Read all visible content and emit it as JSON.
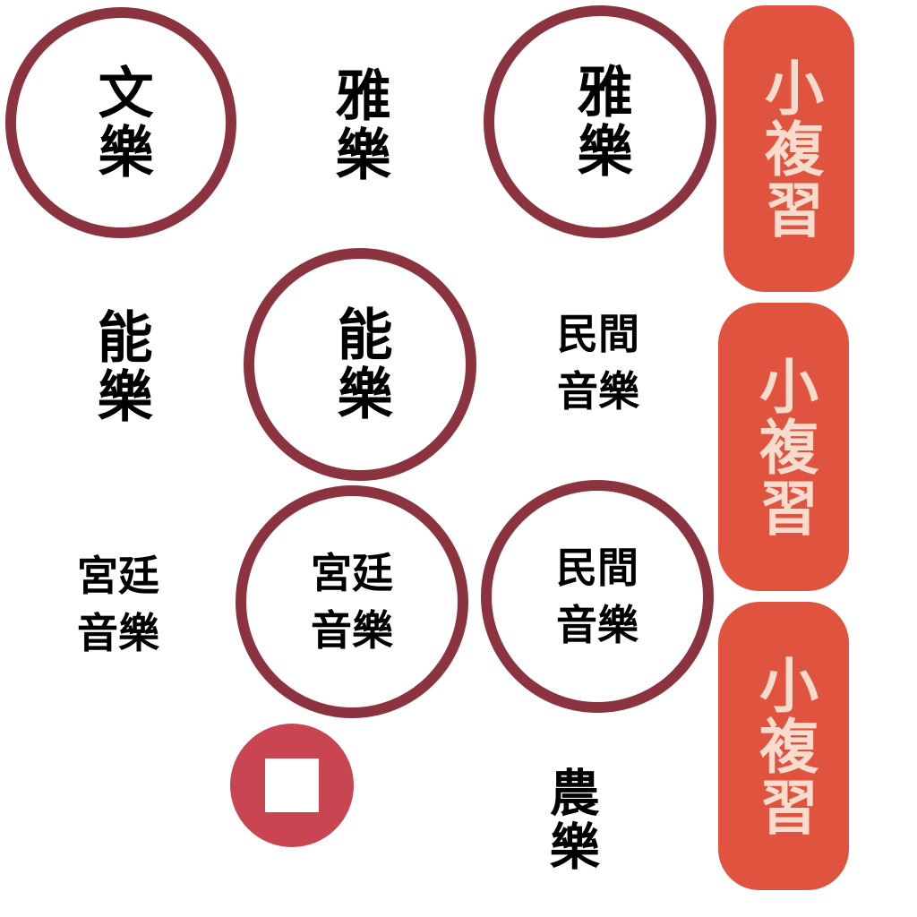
{
  "cards": [
    {
      "id": "wenyue-ring",
      "text": "文樂"
    },
    {
      "id": "yayue-plain",
      "text": "雅樂"
    },
    {
      "id": "yayue-ring",
      "text": "雅樂"
    },
    {
      "id": "nengyue-plain",
      "text": "能樂"
    },
    {
      "id": "nengyue-ring",
      "text": "能樂"
    },
    {
      "id": "minjian-plain",
      "text": "民間音樂"
    },
    {
      "id": "gongting-plain",
      "text": "宮廷音樂"
    },
    {
      "id": "gongting-ring",
      "text": "宮廷音樂"
    },
    {
      "id": "minjian-ring",
      "text": "民間音樂"
    },
    {
      "id": "nongyue-plain",
      "text": "農樂"
    }
  ],
  "review_buttons": [
    {
      "label": "小複習"
    },
    {
      "label": "小複習"
    },
    {
      "label": "小複習"
    }
  ],
  "stop_button": {
    "icon": "stop-square-icon"
  },
  "colors": {
    "ring": "#8b3440",
    "review_bg": "#e0533f",
    "review_text": "#f7dccd",
    "stop_bg": "#c84551"
  }
}
